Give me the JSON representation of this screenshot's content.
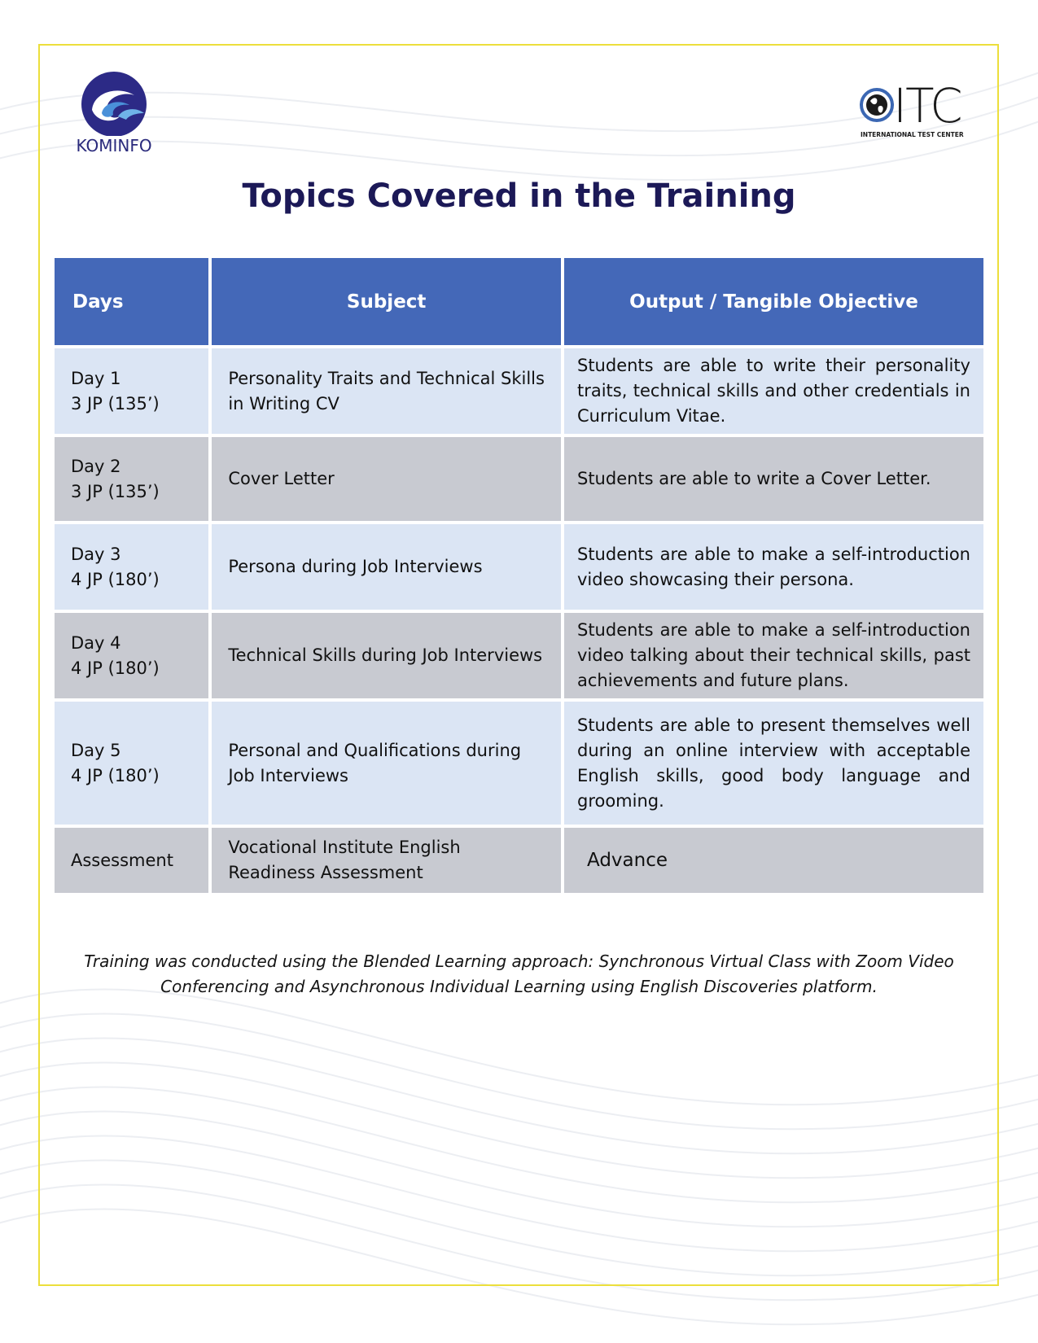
{
  "logos": {
    "left": {
      "text": "KOMINFO"
    },
    "right": {
      "letters": "ITC",
      "subtitle": "INTERNATIONAL TEST CENTER"
    }
  },
  "title": "Topics Covered in the Training",
  "table": {
    "headers": [
      "Days",
      "Subject",
      "Output / Tangible Objective"
    ],
    "rows": [
      {
        "day": "Day 1",
        "jp": "3 JP (135’)",
        "subject": "Personality Traits and Technical Skills in Writing CV",
        "output": "Students are able to write their personality traits, technical skills and other credentials in Curriculum Vitae.",
        "shade": "light"
      },
      {
        "day": "Day 2",
        "jp": "3 JP (135’)",
        "subject": "Cover Letter",
        "output": "Students are able to write a Cover Letter.",
        "shade": "gray"
      },
      {
        "day": "Day 3",
        "jp": "4 JP (180’)",
        "subject": "Persona during Job Interviews",
        "output": "Students are able to make a self-introduction video showcasing their persona.",
        "shade": "light"
      },
      {
        "day": "Day 4",
        "jp": "4 JP (180’)",
        "subject": "Technical Skills during Job Interviews",
        "output": "Students are able to make a self-introduction video talking about their technical skills, past achievements and future plans.",
        "shade": "gray"
      },
      {
        "day": "Day 5",
        "jp": "4 JP (180’)",
        "subject": "Personal and Qualifications during Job Interviews",
        "output": "Students are able to present themselves well during an online interview with acceptable English skills, good body language and grooming.",
        "shade": "light"
      },
      {
        "day": "Assessment",
        "jp": "",
        "subject": "Vocational Institute English Readiness Assessment",
        "output": "Advance",
        "shade": "gray"
      }
    ]
  },
  "footnote": "Training was conducted using the Blended Learning approach: Synchronous Virtual Class with Zoom Video Conferencing and Asynchronous Individual Learning using English Discoveries platform.",
  "colors": {
    "header_blue": "#4468b8",
    "row_light": "#dbe5f4",
    "row_gray": "#c8cad1",
    "title_navy": "#1c1957",
    "frame_yellow": "#ecdf3c"
  }
}
